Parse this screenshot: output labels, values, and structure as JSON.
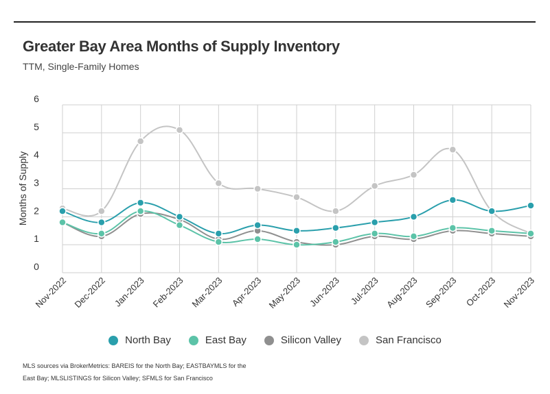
{
  "title": "Greater Bay Area Months of Supply Inventory",
  "subtitle": "TTM, Single-Family Homes",
  "source": "MLS sources via BrokerMetrics: BAREIS for the North Bay; EASTBAYMLS for the East Bay; MLSLISTINGS for Silicon Valley; SFMLS for San Francisco",
  "chart_data": {
    "type": "line",
    "ylabel": "Months of Supply",
    "ylim": [
      0,
      6
    ],
    "yticks": [
      0,
      1,
      2,
      3,
      4,
      5,
      6
    ],
    "grid": true,
    "legend_position": "bottom",
    "categories": [
      "Nov-2022",
      "Dec-2022",
      "Jan-2023",
      "Feb-2023",
      "Mar-2023",
      "Apr-2023",
      "May-2023",
      "Jun-2023",
      "Jul-2023",
      "Aug-2023",
      "Sep-2023",
      "Oct-2023",
      "Nov-2023"
    ],
    "series": [
      {
        "name": "San Francisco",
        "color": "#c4c4c4",
        "values": [
          2.3,
          2.2,
          4.7,
          5.1,
          3.2,
          3.0,
          2.7,
          2.2,
          3.1,
          3.5,
          4.4,
          2.2,
          1.4
        ]
      },
      {
        "name": "Silicon Valley",
        "color": "#8f8f8f",
        "values": [
          1.8,
          1.3,
          2.1,
          1.9,
          1.2,
          1.5,
          1.1,
          1.0,
          1.3,
          1.2,
          1.5,
          1.4,
          1.3
        ]
      },
      {
        "name": "East Bay",
        "color": "#5cc3a8",
        "values": [
          1.8,
          1.4,
          2.2,
          1.7,
          1.1,
          1.2,
          1.0,
          1.1,
          1.4,
          1.3,
          1.6,
          1.5,
          1.4
        ]
      },
      {
        "name": "North Bay",
        "color": "#2a9fac",
        "values": [
          2.2,
          1.8,
          2.5,
          2.0,
          1.4,
          1.7,
          1.5,
          1.6,
          1.8,
          2.0,
          2.6,
          2.2,
          2.4
        ]
      }
    ],
    "legend": [
      "North Bay",
      "East Bay",
      "Silicon Valley",
      "San Francisco"
    ]
  }
}
